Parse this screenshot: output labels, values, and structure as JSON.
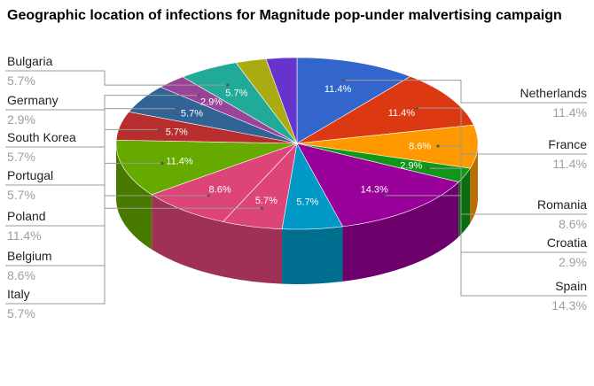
{
  "chart_data": {
    "type": "pie",
    "title": "Geographic location of infections for Magnitude pop-under malvertising campaign",
    "style": "3d",
    "slices": [
      {
        "label": "Netherlands",
        "value": 11.4,
        "display": "11.4%",
        "color": "#3366cc",
        "side": "right"
      },
      {
        "label": "France",
        "value": 11.4,
        "display": "11.4%",
        "color": "#dc3912",
        "side": "right"
      },
      {
        "label": "Romania",
        "value": 8.6,
        "display": "8.6%",
        "color": "#ff9900",
        "side": "right"
      },
      {
        "label": "Croatia",
        "value": 2.9,
        "display": "2.9%",
        "color": "#109618",
        "side": "right"
      },
      {
        "label": "Spain",
        "value": 14.3,
        "display": "14.3%",
        "color": "#990099",
        "side": "right"
      },
      {
        "label": "",
        "value": 5.7,
        "display": "5.7%",
        "color": "#0099c6",
        "side": "none"
      },
      {
        "label": "Italy",
        "value": 5.7,
        "display": "5.7%",
        "color": "#dd4477",
        "side": "left"
      },
      {
        "label": "Belgium",
        "value": 8.6,
        "display": "8.6%",
        "color": "#dd4477",
        "side": "left",
        "inner_display": "8.6%"
      },
      {
        "label": "Poland",
        "value": 11.4,
        "display": "11.4%",
        "color": "#66aa00",
        "side": "left"
      },
      {
        "label": "Portugal",
        "value": 5.7,
        "display": "5.7%",
        "color": "#b82e2e",
        "side": "left"
      },
      {
        "label": "South Korea",
        "value": 5.7,
        "display": "5.7%",
        "color": "#316395",
        "side": "left"
      },
      {
        "label": "Germany",
        "value": 2.9,
        "display": "2.9%",
        "color": "#994499",
        "side": "left"
      },
      {
        "label": "Bulgaria",
        "value": 5.7,
        "display": "5.7%",
        "color": "#22aa99",
        "side": "left"
      },
      {
        "label": "",
        "value": 2.9,
        "display": "",
        "color": "#aaaa11",
        "side": "none"
      },
      {
        "label": "",
        "value": 2.9,
        "display": "",
        "color": "#6633cc",
        "side": "none"
      }
    ]
  }
}
